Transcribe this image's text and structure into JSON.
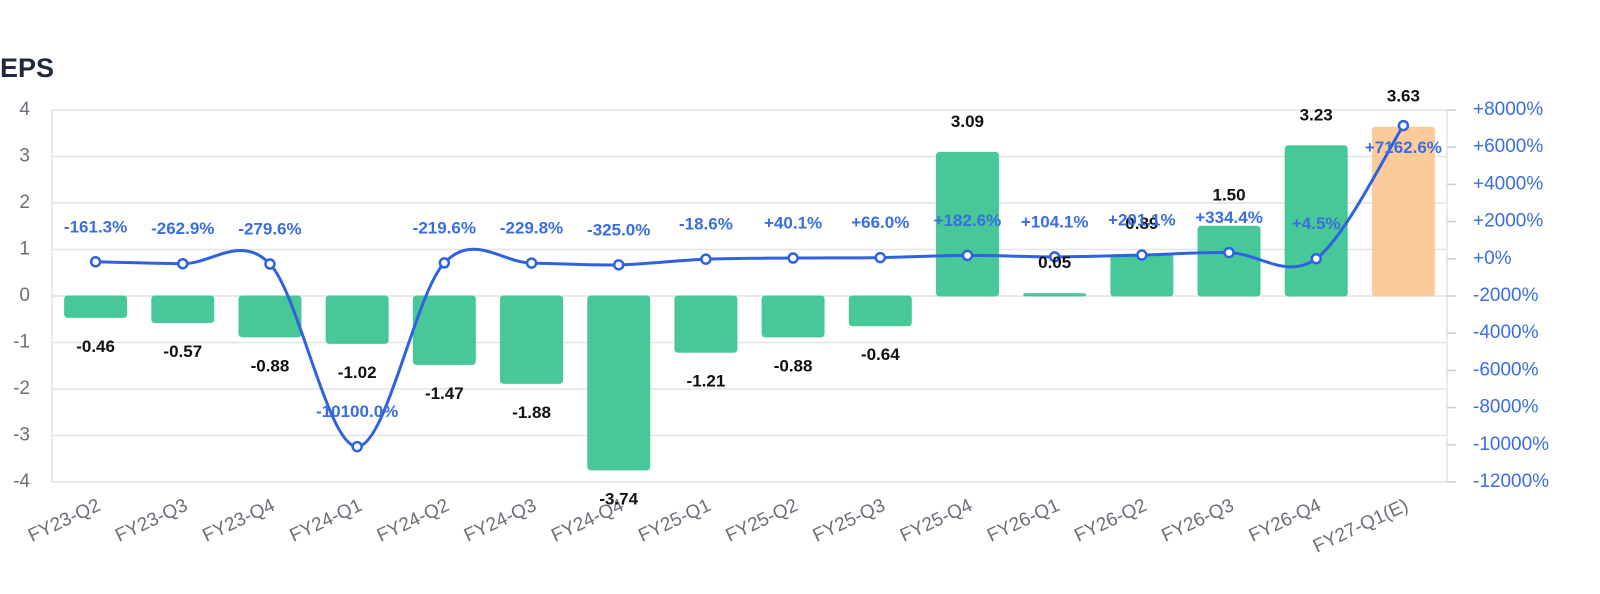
{
  "chart_data": {
    "type": "bar_line",
    "title": "EPS",
    "categories": [
      "FY23-Q2",
      "FY23-Q3",
      "FY23-Q4",
      "FY24-Q1",
      "FY24-Q2",
      "FY24-Q3",
      "FY24-Q4",
      "FY25-Q1",
      "FY25-Q2",
      "FY25-Q3",
      "FY25-Q4",
      "FY26-Q1",
      "FY26-Q2",
      "FY26-Q3",
      "FY26-Q4",
      "FY27-Q1(E)"
    ],
    "series": [
      {
        "type": "bar",
        "colors": [
          "#3ec594",
          "#3ec594",
          "#3ec594",
          "#3ec594",
          "#3ec594",
          "#3ec594",
          "#3ec594",
          "#3ec594",
          "#3ec594",
          "#3ec594",
          "#3ec594",
          "#3ec594",
          "#3ec594",
          "#3ec594",
          "#3ec594",
          "#fbc994"
        ],
        "values": [
          -0.46,
          -0.57,
          -0.88,
          -1.02,
          -1.47,
          -1.88,
          -3.74,
          -1.21,
          -0.88,
          -0.64,
          3.09,
          0.05,
          0.89,
          1.5,
          3.23,
          3.63
        ],
        "value_labels": [
          "-0.46",
          "-0.57",
          "-0.88",
          "-1.02",
          "-1.47",
          "-1.88",
          "-3.74",
          "-1.21",
          "-0.88",
          "-0.64",
          "3.09",
          "0.05",
          "0.89",
          "1.50",
          "3.23",
          "3.63"
        ]
      },
      {
        "type": "line",
        "axis": "y2",
        "color": "#2f62e0",
        "values": [
          -161.3,
          -262.9,
          -279.6,
          -10100.0,
          -219.6,
          -229.8,
          -325.0,
          -18.6,
          40.1,
          66.0,
          182.6,
          104.1,
          201.1,
          334.4,
          4.5,
          7162.6
        ],
        "value_labels": [
          "-161.3%",
          "-262.9%",
          "-279.6%",
          "-10100.0%",
          "-219.6%",
          "-229.8%",
          "-325.0%",
          "-18.6%",
          "+40.1%",
          "+66.0%",
          "+182.6%",
          "+104.1%",
          "+201.1%",
          "+334.4%",
          "+4.5%",
          "+7162.6%"
        ]
      }
    ],
    "ylim": [
      -4,
      4
    ],
    "yticks": [
      -4,
      -3,
      -2,
      -1,
      0,
      1,
      2,
      3,
      4
    ],
    "y2lim": [
      -12000,
      8000
    ],
    "y2ticks": [
      {
        "value": -12000,
        "label": "-12000%"
      },
      {
        "value": -10000,
        "label": "-10000%"
      },
      {
        "value": -8000,
        "label": "-8000%"
      },
      {
        "value": -6000,
        "label": "-6000%"
      },
      {
        "value": -4000,
        "label": "-4000%"
      },
      {
        "value": -2000,
        "label": "-2000%"
      },
      {
        "value": 0,
        "label": "+0%"
      },
      {
        "value": 2000,
        "label": "+2000%"
      },
      {
        "value": 4000,
        "label": "+4000%"
      },
      {
        "value": 6000,
        "label": "+6000%"
      },
      {
        "value": 8000,
        "label": "+8000%"
      }
    ],
    "grid": true
  }
}
